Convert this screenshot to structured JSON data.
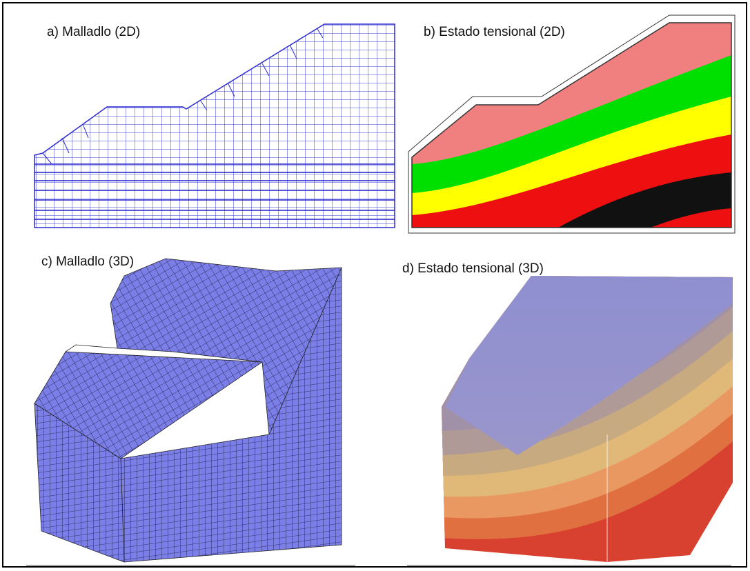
{
  "panels": [
    {
      "label": "a) Malladlo (2D)"
    },
    {
      "label": "b) Estado tensional (2D)"
    },
    {
      "label": "c) Malladlo (3D)"
    },
    {
      "label": "d) Estado tensional (3D)"
    }
  ]
}
